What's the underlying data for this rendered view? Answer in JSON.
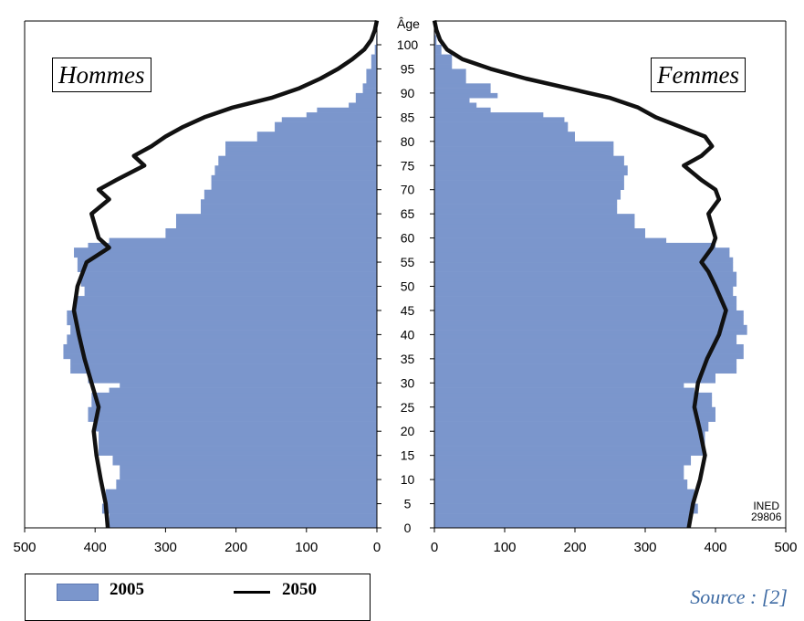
{
  "chart_data": {
    "type": "population-pyramid",
    "left_panel_label": "Hommes",
    "right_panel_label": "Femmes",
    "age_axis_label": "Âge",
    "age_ticks": [
      0,
      5,
      10,
      15,
      20,
      25,
      30,
      35,
      40,
      45,
      50,
      55,
      60,
      65,
      70,
      75,
      80,
      85,
      90,
      95,
      100
    ],
    "x_ticks_left": [
      500,
      400,
      300,
      200,
      100,
      0
    ],
    "x_ticks_right": [
      0,
      100,
      200,
      300,
      400,
      500
    ],
    "xlim": [
      0,
      500
    ],
    "ylim": [
      0,
      105
    ],
    "legend": [
      {
        "label": "2005",
        "style": "bar",
        "color": "#7b96cc"
      },
      {
        "label": "2050",
        "style": "line",
        "color": "#111111"
      }
    ],
    "series": [
      {
        "name": "2005",
        "side": "Hommes",
        "points": [
          [
            0,
            380
          ],
          [
            3,
            390
          ],
          [
            5,
            385
          ],
          [
            8,
            370
          ],
          [
            10,
            365
          ],
          [
            13,
            375
          ],
          [
            15,
            395
          ],
          [
            20,
            400
          ],
          [
            22,
            410
          ],
          [
            25,
            405
          ],
          [
            28,
            380
          ],
          [
            29,
            365
          ],
          [
            30,
            410
          ],
          [
            32,
            435
          ],
          [
            35,
            445
          ],
          [
            38,
            440
          ],
          [
            40,
            435
          ],
          [
            42,
            440
          ],
          [
            45,
            430
          ],
          [
            48,
            415
          ],
          [
            50,
            420
          ],
          [
            53,
            425
          ],
          [
            56,
            430
          ],
          [
            58,
            410
          ],
          [
            59,
            380
          ],
          [
            60,
            300
          ],
          [
            62,
            285
          ],
          [
            65,
            250
          ],
          [
            68,
            245
          ],
          [
            70,
            235
          ],
          [
            73,
            230
          ],
          [
            75,
            225
          ],
          [
            77,
            215
          ],
          [
            80,
            170
          ],
          [
            82,
            145
          ],
          [
            84,
            135
          ],
          [
            85,
            100
          ],
          [
            86,
            85
          ],
          [
            87,
            40
          ],
          [
            88,
            30
          ],
          [
            90,
            20
          ],
          [
            92,
            15
          ],
          [
            95,
            8
          ],
          [
            98,
            3
          ],
          [
            100,
            1
          ],
          [
            102,
            0
          ]
        ]
      },
      {
        "name": "2005",
        "side": "Femmes",
        "points": [
          [
            0,
            365
          ],
          [
            3,
            375
          ],
          [
            5,
            370
          ],
          [
            8,
            360
          ],
          [
            10,
            355
          ],
          [
            13,
            365
          ],
          [
            15,
            385
          ],
          [
            20,
            390
          ],
          [
            22,
            400
          ],
          [
            25,
            395
          ],
          [
            28,
            370
          ],
          [
            29,
            355
          ],
          [
            30,
            400
          ],
          [
            32,
            430
          ],
          [
            35,
            440
          ],
          [
            38,
            430
          ],
          [
            40,
            445
          ],
          [
            42,
            440
          ],
          [
            45,
            430
          ],
          [
            48,
            425
          ],
          [
            50,
            430
          ],
          [
            53,
            425
          ],
          [
            56,
            420
          ],
          [
            58,
            400
          ],
          [
            59,
            330
          ],
          [
            60,
            300
          ],
          [
            62,
            285
          ],
          [
            65,
            260
          ],
          [
            68,
            265
          ],
          [
            70,
            270
          ],
          [
            73,
            275
          ],
          [
            75,
            270
          ],
          [
            77,
            255
          ],
          [
            80,
            200
          ],
          [
            82,
            190
          ],
          [
            84,
            185
          ],
          [
            85,
            155
          ],
          [
            86,
            80
          ],
          [
            87,
            60
          ],
          [
            88,
            50
          ],
          [
            89,
            90
          ],
          [
            90,
            80
          ],
          [
            92,
            45
          ],
          [
            95,
            25
          ],
          [
            98,
            10
          ],
          [
            100,
            3
          ],
          [
            102,
            1
          ]
        ]
      },
      {
        "name": "2050",
        "side": "Hommes",
        "points": [
          [
            0,
            382
          ],
          [
            5,
            385
          ],
          [
            10,
            392
          ],
          [
            15,
            398
          ],
          [
            20,
            402
          ],
          [
            25,
            395
          ],
          [
            30,
            405
          ],
          [
            35,
            415
          ],
          [
            40,
            423
          ],
          [
            45,
            430
          ],
          [
            50,
            425
          ],
          [
            55,
            412
          ],
          [
            58,
            380
          ],
          [
            60,
            395
          ],
          [
            65,
            405
          ],
          [
            68,
            380
          ],
          [
            70,
            395
          ],
          [
            72,
            370
          ],
          [
            75,
            330
          ],
          [
            77,
            345
          ],
          [
            79,
            320
          ],
          [
            81,
            300
          ],
          [
            83,
            275
          ],
          [
            85,
            245
          ],
          [
            87,
            205
          ],
          [
            89,
            150
          ],
          [
            91,
            110
          ],
          [
            93,
            80
          ],
          [
            95,
            55
          ],
          [
            97,
            35
          ],
          [
            99,
            18
          ],
          [
            101,
            8
          ],
          [
            103,
            3
          ],
          [
            105,
            0
          ]
        ]
      },
      {
        "name": "2050",
        "side": "Femmes",
        "points": [
          [
            0,
            362
          ],
          [
            5,
            368
          ],
          [
            10,
            378
          ],
          [
            15,
            385
          ],
          [
            20,
            378
          ],
          [
            25,
            370
          ],
          [
            30,
            375
          ],
          [
            35,
            388
          ],
          [
            40,
            405
          ],
          [
            45,
            415
          ],
          [
            50,
            400
          ],
          [
            53,
            390
          ],
          [
            55,
            380
          ],
          [
            58,
            395
          ],
          [
            60,
            400
          ],
          [
            65,
            390
          ],
          [
            68,
            405
          ],
          [
            70,
            400
          ],
          [
            72,
            380
          ],
          [
            75,
            355
          ],
          [
            77,
            380
          ],
          [
            79,
            395
          ],
          [
            81,
            385
          ],
          [
            83,
            350
          ],
          [
            85,
            315
          ],
          [
            87,
            290
          ],
          [
            89,
            250
          ],
          [
            91,
            190
          ],
          [
            93,
            130
          ],
          [
            95,
            80
          ],
          [
            97,
            40
          ],
          [
            99,
            18
          ],
          [
            101,
            8
          ],
          [
            103,
            3
          ],
          [
            105,
            0
          ]
        ]
      }
    ],
    "colors": {
      "bars": "#7b96cc",
      "bars_edge": "#5d78b2",
      "line": "#111111"
    },
    "source": "Source : [2]",
    "credit": [
      "INED",
      "29806"
    ]
  }
}
